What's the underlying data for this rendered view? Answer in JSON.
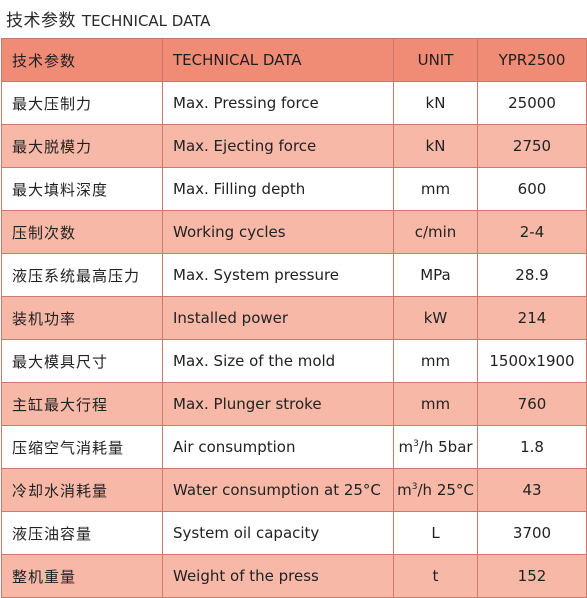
{
  "title": {
    "cn": "技术参数",
    "en": "TECHNICAL DATA"
  },
  "colors": {
    "header": "#f08c76",
    "stripe": "#f7b8a8",
    "border": "#c97a69"
  },
  "header": {
    "c1": "技术参数",
    "c2": "TECHNICAL DATA",
    "c3": "UNIT",
    "c4": "YPR2500"
  },
  "rows": [
    {
      "cn": "最大压制力",
      "en": "Max. Pressing force",
      "unit": "kN",
      "value": "25000"
    },
    {
      "cn": "最大脱模力",
      "en": "Max. Ejecting force",
      "unit": "kN",
      "value": "2750"
    },
    {
      "cn": "最大填料深度",
      "en": "Max. Filling depth",
      "unit": "mm",
      "value": "600"
    },
    {
      "cn": "压制次数",
      "en": "Working cycles",
      "unit": "c/min",
      "value": "2-4"
    },
    {
      "cn": "液压系统最高压力",
      "en": "Max. System pressure",
      "unit": "MPa",
      "value": "28.9"
    },
    {
      "cn": "装机功率",
      "en": "Installed power",
      "unit": "kW",
      "value": "214"
    },
    {
      "cn": "最大模具尺寸",
      "en": "Max. Size of the mold",
      "unit": "mm",
      "value": "1500x1900"
    },
    {
      "cn": "主缸最大行程",
      "en": "Max. Plunger stroke",
      "unit": "mm",
      "value": "760"
    },
    {
      "cn": "压缩空气消耗量",
      "en": "Air consumption",
      "unit_base": "m",
      "unit_sup": "3",
      "unit_rest": "/h 5bar",
      "value": "1.8"
    },
    {
      "cn": "冷却水消耗量",
      "en": "Water consumption at 25°C",
      "unit_base": "m",
      "unit_sup": "3",
      "unit_rest": "/h 25°C",
      "value": "43"
    },
    {
      "cn": "液压油容量",
      "en": "System oil capacity",
      "unit": "L",
      "value": "3700"
    },
    {
      "cn": "整机重量",
      "en": "Weight of the press",
      "unit": "t",
      "value": "152"
    }
  ]
}
